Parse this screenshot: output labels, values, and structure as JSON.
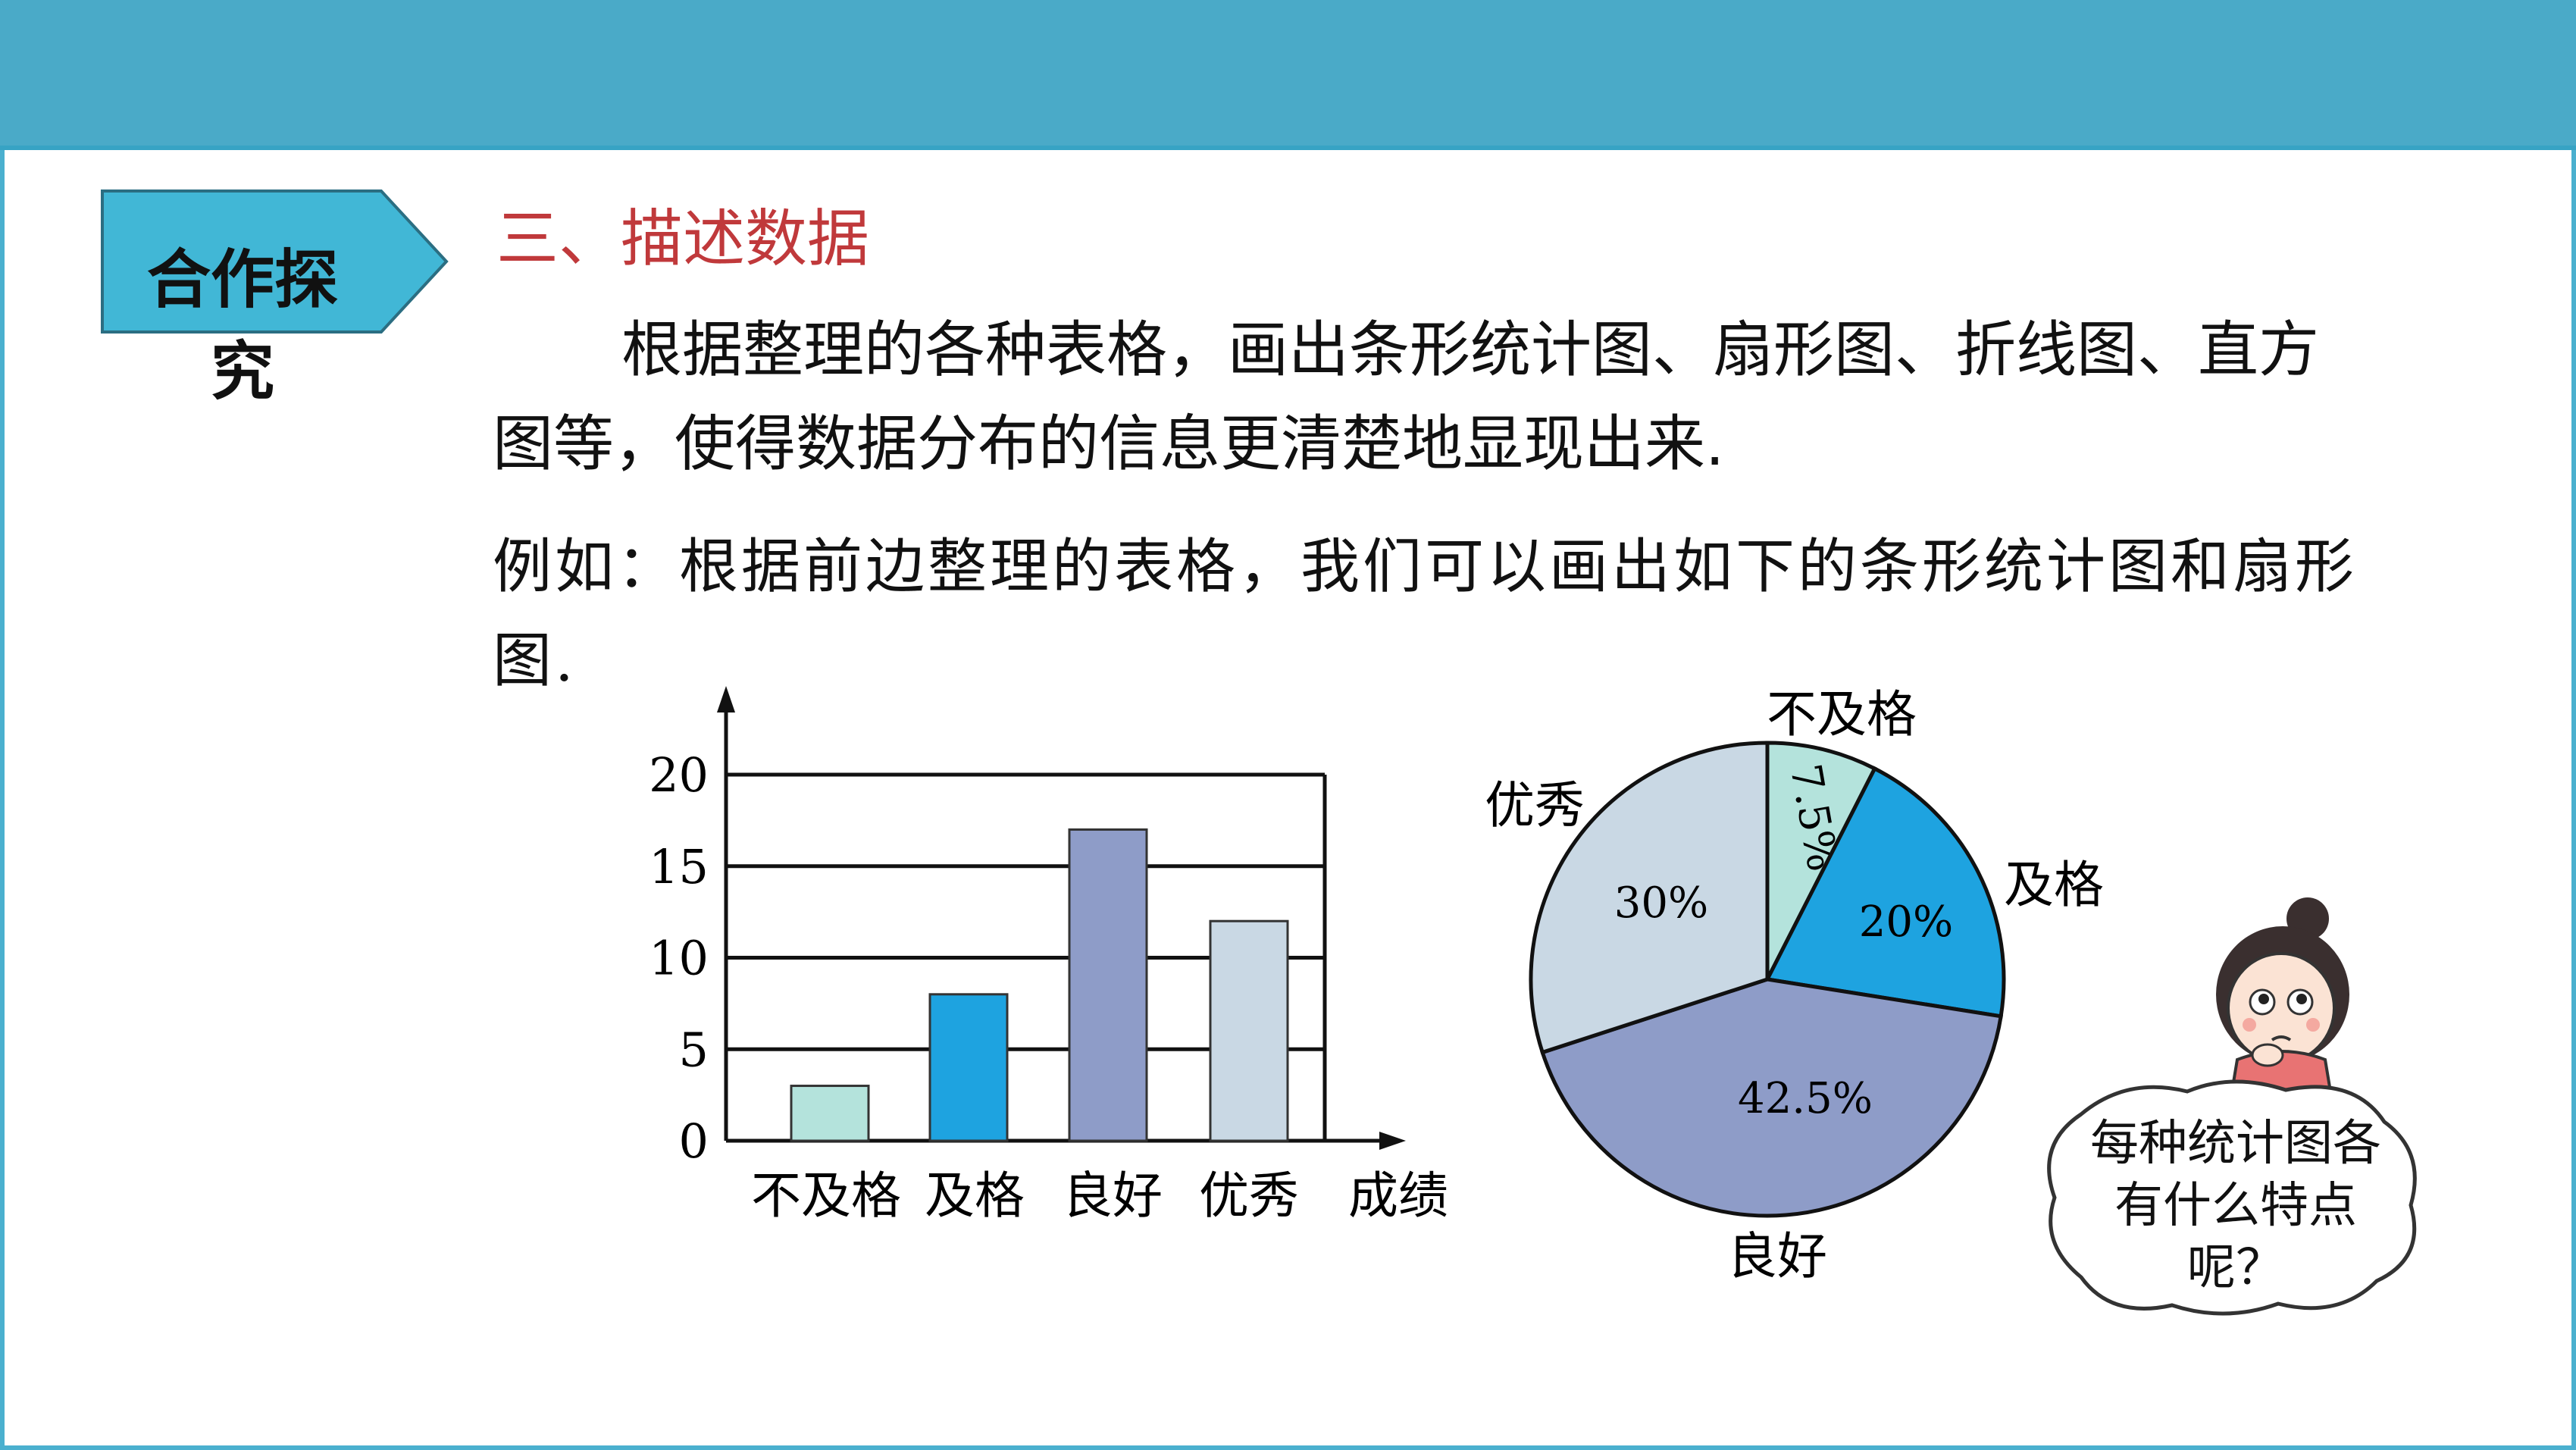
{
  "tag": {
    "label": "合作探究"
  },
  "section_title": "三、描述数据",
  "paragraphs": {
    "p1": "根据整理的各种表格，画出条形统计图、扇形图、折线图、直方图等，使得数据分布的信息更清楚地显现出来.",
    "p2": "例如：根据前边整理的表格，我们可以画出如下的条形统计图和扇形图."
  },
  "bubble": {
    "text": "每种统计图各有什么特点呢？"
  },
  "colors": {
    "top_bar": "#4aaac8",
    "tag_fill": "#41b7d6",
    "title_red": "#c0393b",
    "fail": "#b4e3dc",
    "pass": "#1ea3e0",
    "good": "#8e9cc8",
    "excellent": "#c9d8e4"
  },
  "chart_data": [
    {
      "type": "bar",
      "categories": [
        "不及格",
        "及格",
        "良好",
        "优秀"
      ],
      "values": [
        3,
        8,
        17,
        12
      ],
      "xlabel": "成绩",
      "ylabel": "",
      "yticks": [
        0,
        5,
        10,
        15,
        20
      ],
      "ylim": [
        0,
        20
      ],
      "grid": true,
      "colors": [
        "#b4e3dc",
        "#1ea3e0",
        "#8e9cc8",
        "#c9d8e4"
      ]
    },
    {
      "type": "pie",
      "labels": [
        "不及格",
        "及格",
        "良好",
        "优秀"
      ],
      "values": [
        7.5,
        20,
        42.5,
        30
      ],
      "value_labels": [
        "7.5%",
        "20%",
        "42.5%",
        "30%"
      ],
      "colors": [
        "#b4e3dc",
        "#1ea3e0",
        "#8e9cc8",
        "#c9d8e4"
      ]
    }
  ]
}
